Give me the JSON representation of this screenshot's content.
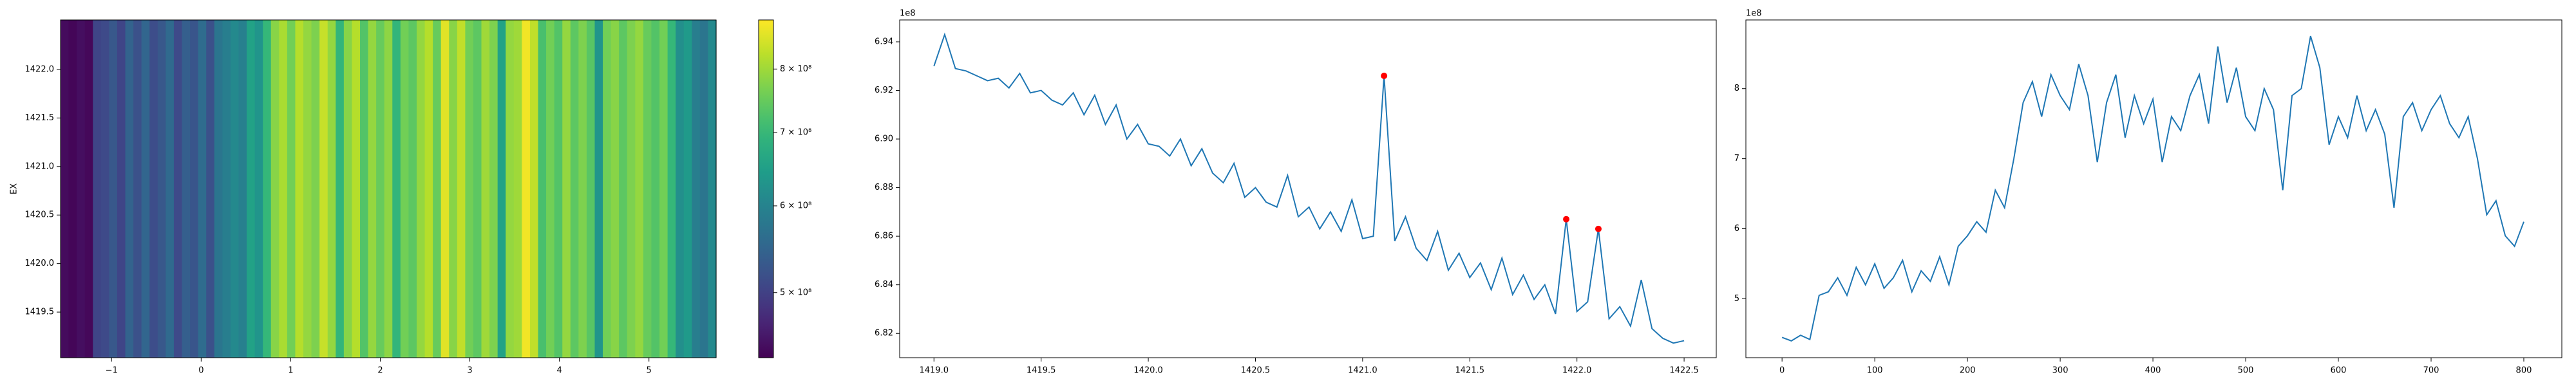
{
  "chart_data": [
    {
      "type": "heatmap",
      "ylabel": "EX",
      "xlim": [
        -1.57,
        5.75
      ],
      "ylim": [
        1419.03,
        1422.51
      ],
      "xticks": [
        {
          "value": -1,
          "label": "−1"
        },
        0,
        1,
        2,
        3,
        4,
        5
      ],
      "yticks": [
        1419.5,
        {
          "value": 1420,
          "label": "1420.0"
        },
        1420.5,
        {
          "value": 1421,
          "label": "1421.0"
        },
        1421.5,
        {
          "value": 1422,
          "label": "1422.0"
        }
      ],
      "colormap": "viridis",
      "values": [
        445000000,
        440000000,
        448000000,
        442000000,
        505000000,
        510000000,
        530000000,
        505000000,
        545000000,
        520000000,
        550000000,
        515000000,
        530000000,
        555000000,
        510000000,
        540000000,
        525000000,
        560000000,
        520000000,
        575000000,
        590000000,
        610000000,
        595000000,
        655000000,
        630000000,
        700000000,
        780000000,
        810000000,
        760000000,
        820000000,
        790000000,
        770000000,
        835000000,
        790000000,
        695000000,
        780000000,
        820000000,
        730000000,
        790000000,
        750000000,
        785000000,
        695000000,
        760000000,
        740000000,
        790000000,
        820000000,
        750000000,
        860000000,
        780000000,
        830000000,
        760000000,
        740000000,
        800000000,
        770000000,
        655000000,
        790000000,
        800000000,
        875000000,
        830000000,
        720000000,
        760000000,
        730000000,
        790000000,
        740000000,
        770000000,
        735000000,
        630000000,
        760000000,
        780000000,
        740000000,
        770000000,
        790000000,
        750000000,
        730000000,
        760000000,
        700000000,
        620000000,
        640000000,
        590000000,
        575000000,
        610000000
      ],
      "colorbar": {
        "scale": "log",
        "lim": [
          436000000,
          887000000
        ],
        "ticks": [
          {
            "value": 500000000,
            "label": "5 × 10⁸"
          },
          {
            "value": 600000000,
            "label": "6 × 10⁸"
          },
          {
            "value": 700000000,
            "label": "7 × 10⁸"
          },
          {
            "value": 800000000,
            "label": "8 × 10⁸"
          }
        ]
      }
    },
    {
      "type": "line",
      "offset_label": "1e8",
      "xlim": [
        1418.84,
        1422.65
      ],
      "ylim": [
        6.81,
        6.949
      ],
      "xticks": [
        {
          "value": 1419,
          "label": "1419.0"
        },
        1419.5,
        {
          "value": 1420,
          "label": "1420.0"
        },
        1420.5,
        {
          "value": 1421,
          "label": "1421.0"
        },
        1421.5,
        {
          "value": 1422,
          "label": "1422.0"
        },
        1422.5
      ],
      "yticks": [
        6.82,
        6.84,
        6.86,
        6.88,
        {
          "value": 6.9,
          "label": "6.90"
        },
        6.92,
        6.94
      ],
      "series": [
        {
          "color": "#1f77b4",
          "style": "line",
          "x": [
            1419,
            1419.05,
            1419.1,
            1419.15,
            1419.2,
            1419.25,
            1419.3,
            1419.35,
            1419.4,
            1419.45,
            1419.5,
            1419.55,
            1419.6,
            1419.65,
            1419.7,
            1419.75,
            1419.8,
            1419.85,
            1419.9,
            1419.95,
            1420,
            1420.05,
            1420.1,
            1420.15,
            1420.2,
            1420.25,
            1420.3,
            1420.35,
            1420.4,
            1420.45,
            1420.5,
            1420.55,
            1420.6,
            1420.65,
            1420.7,
            1420.75,
            1420.8,
            1420.85,
            1420.9,
            1420.95,
            1421,
            1421.05,
            1421.1,
            1421.15,
            1421.2,
            1421.25,
            1421.3,
            1421.35,
            1421.4,
            1421.45,
            1421.5,
            1421.55,
            1421.6,
            1421.65,
            1421.7,
            1421.75,
            1421.8,
            1421.85,
            1421.9,
            1421.95,
            1422,
            1422.05,
            1422.1,
            1422.15,
            1422.2,
            1422.25,
            1422.3,
            1422.35,
            1422.4,
            1422.45,
            1422.5
          ],
          "values": [
            6.93,
            6.943,
            6.929,
            6.928,
            6.926,
            6.924,
            6.925,
            6.921,
            6.927,
            6.919,
            6.92,
            6.916,
            6.914,
            6.919,
            6.91,
            6.918,
            6.906,
            6.914,
            6.9,
            6.906,
            6.898,
            6.897,
            6.893,
            6.9,
            6.889,
            6.896,
            6.886,
            6.882,
            6.89,
            6.876,
            6.88,
            6.874,
            6.872,
            6.885,
            6.868,
            6.872,
            6.863,
            6.87,
            6.862,
            6.875,
            6.859,
            6.86,
            6.926,
            6.858,
            6.868,
            6.855,
            6.85,
            6.862,
            6.846,
            6.853,
            6.843,
            6.849,
            6.838,
            6.851,
            6.836,
            6.844,
            6.834,
            6.84,
            6.828,
            6.867,
            6.829,
            6.833,
            6.863,
            6.826,
            6.831,
            6.823,
            6.842,
            6.822,
            6.818,
            6.816,
            6.817
          ]
        },
        {
          "color": "#ff0000",
          "style": "markers",
          "x": [
            1421.1,
            1421.95,
            1422.1
          ],
          "values": [
            6.926,
            6.867,
            6.863
          ]
        }
      ]
    },
    {
      "type": "line",
      "offset_label": "1e8",
      "xlim": [
        -39,
        841
      ],
      "ylim": [
        4.16,
        8.98
      ],
      "xticks": [
        0,
        100,
        200,
        300,
        400,
        500,
        600,
        700,
        800
      ],
      "yticks": [
        5,
        6,
        7,
        8
      ],
      "series": [
        {
          "color": "#1f77b4",
          "style": "line",
          "x": [
            0,
            10,
            20,
            30,
            40,
            50,
            60,
            70,
            80,
            90,
            100,
            110,
            120,
            130,
            140,
            150,
            160,
            170,
            180,
            190,
            200,
            210,
            220,
            230,
            240,
            250,
            260,
            270,
            280,
            290,
            300,
            310,
            320,
            330,
            340,
            350,
            360,
            370,
            380,
            390,
            400,
            410,
            420,
            430,
            440,
            450,
            460,
            470,
            480,
            490,
            500,
            510,
            520,
            530,
            540,
            550,
            560,
            570,
            580,
            590,
            600,
            610,
            620,
            630,
            640,
            650,
            660,
            670,
            680,
            690,
            700,
            710,
            720,
            730,
            740,
            750,
            760,
            770,
            780,
            790,
            800
          ],
          "values": [
            4.45,
            4.4,
            4.48,
            4.42,
            5.05,
            5.1,
            5.3,
            5.05,
            5.45,
            5.2,
            5.5,
            5.15,
            5.3,
            5.55,
            5.1,
            5.4,
            5.25,
            5.6,
            5.2,
            5.75,
            5.9,
            6.1,
            5.95,
            6.55,
            6.3,
            7.0,
            7.8,
            8.1,
            7.6,
            8.2,
            7.9,
            7.7,
            8.35,
            7.9,
            6.95,
            7.8,
            8.2,
            7.3,
            7.9,
            7.5,
            7.85,
            6.95,
            7.6,
            7.4,
            7.9,
            8.2,
            7.5,
            8.6,
            7.8,
            8.3,
            7.6,
            7.4,
            8.0,
            7.7,
            6.55,
            7.9,
            8.0,
            8.75,
            8.3,
            7.2,
            7.6,
            7.3,
            7.9,
            7.4,
            7.7,
            7.35,
            6.3,
            7.6,
            7.8,
            7.4,
            7.7,
            7.9,
            7.5,
            7.3,
            7.6,
            7.0,
            6.2,
            6.4,
            5.9,
            5.75,
            6.1
          ]
        }
      ]
    }
  ]
}
